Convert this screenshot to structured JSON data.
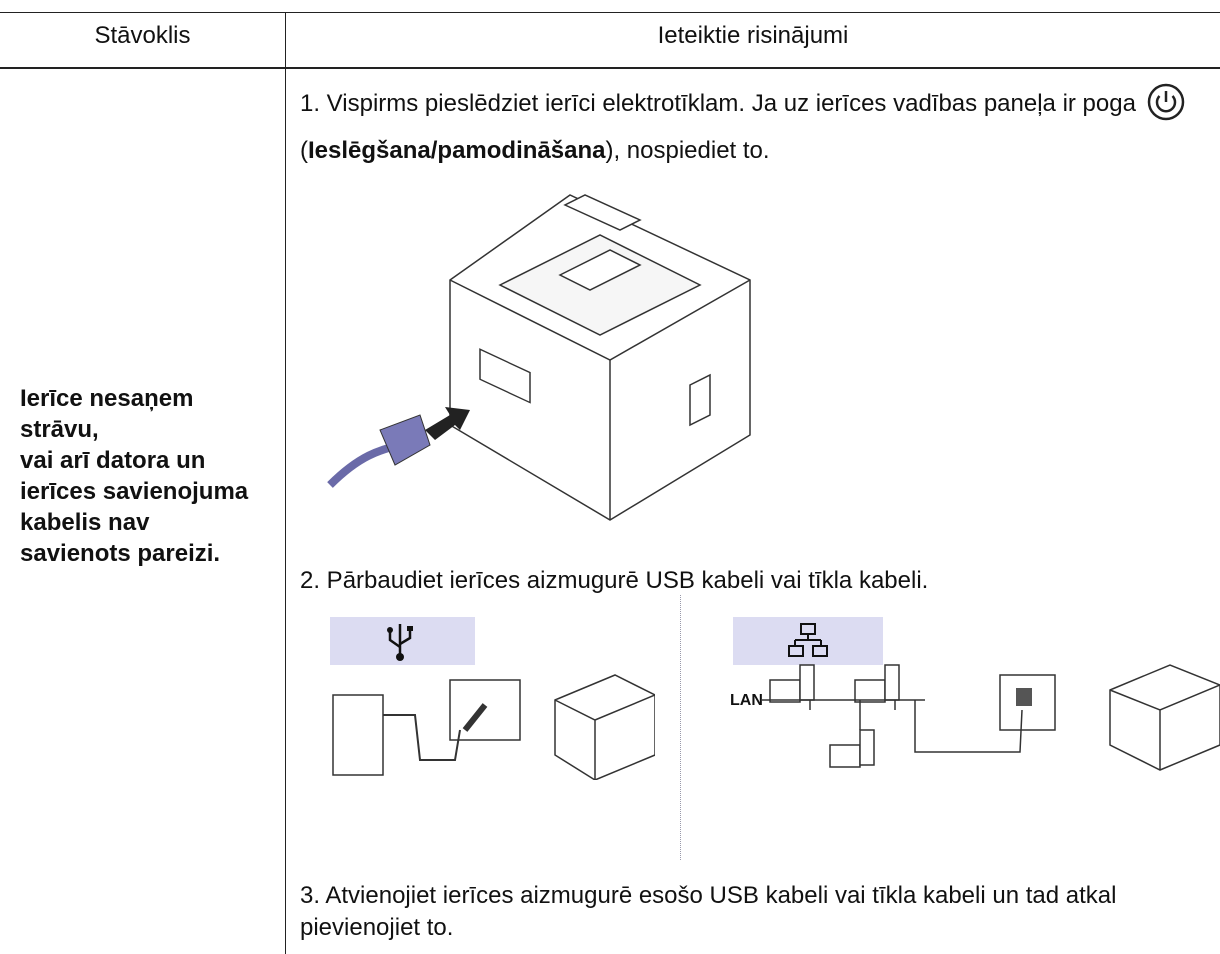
{
  "table": {
    "headers": [
      "Stāvoklis",
      "Ieteiktie risinājumi"
    ],
    "condition": [
      "Ierīce nesaņem strāvu,",
      "vai arī datora un ierīces savienojuma kabelis nav savienots pareizi."
    ],
    "steps": [
      {
        "before": "1. Vispirms pieslēdziet ierīci elektrotīklam. Ja uz ierīces vadības paneļa ir poga",
        "open": "(",
        "bold": "Ieslēgšana/pamodināšana",
        "after": "), nospiediet to."
      },
      {
        "text": "2. Pārbaudiet ierīces aizmugurē USB kabeli vai tīkla kabeli."
      },
      {
        "text": "3. Atvienojiet ierīces aizmugurē esošo USB kabeli vai tīkla kabeli un tad atkal pievienojiet to."
      }
    ],
    "network_label": "LAN"
  }
}
